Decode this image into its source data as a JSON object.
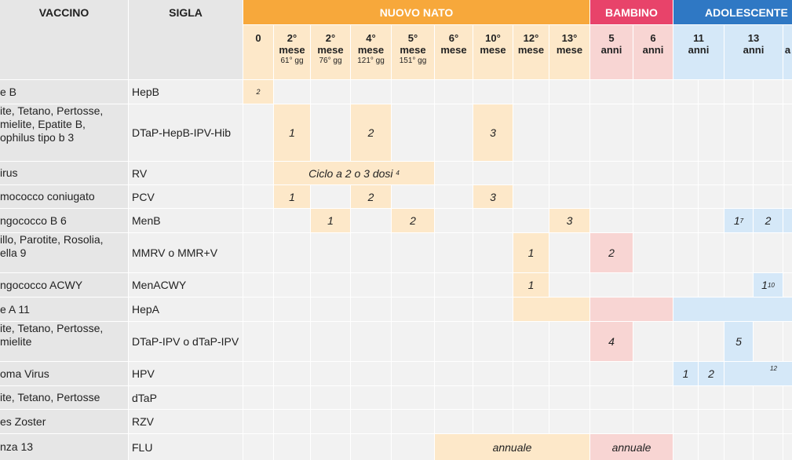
{
  "header": {
    "vaccine_col": "VACCINO",
    "abbr_col": "SIGLA",
    "groups": [
      "NUOVO NATO",
      "BAMBINO",
      "ADOLESCENTE"
    ]
  },
  "ages": [
    {
      "n": "0",
      "u": "",
      "s": ""
    },
    {
      "n": "2°",
      "u": "mese",
      "s": "61° gg"
    },
    {
      "n": "2°",
      "u": "mese",
      "s": "76° gg"
    },
    {
      "n": "4°",
      "u": "mese",
      "s": "121° gg"
    },
    {
      "n": "5°",
      "u": "mese",
      "s": "151° gg"
    },
    {
      "n": "6°",
      "u": "mese",
      "s": ""
    },
    {
      "n": "10°",
      "u": "mese",
      "s": ""
    },
    {
      "n": "12°",
      "u": "mese",
      "s": ""
    },
    {
      "n": "13°",
      "u": "mese",
      "s": ""
    },
    {
      "n": "5",
      "u": "anni",
      "s": ""
    },
    {
      "n": "6",
      "u": "anni",
      "s": ""
    },
    {
      "n": "11",
      "u": "anni",
      "s": ""
    },
    {
      "n": "13",
      "u": "anni",
      "s": ""
    },
    {
      "n": "",
      "u": "a",
      "s": ""
    }
  ],
  "rows": [
    {
      "name": [
        "e B"
      ],
      "abbr": "HepB"
    },
    {
      "name": [
        "ite, Tetano, Pertosse,",
        "mielite, Epatite B,",
        "ophilus tipo b 3"
      ],
      "abbr": "DTaP-HepB-IPV-Hib"
    },
    {
      "name": [
        "irus"
      ],
      "abbr": "RV"
    },
    {
      "name": [
        "mococco coniugato"
      ],
      "abbr": "PCV"
    },
    {
      "name": [
        "ngococco B 6"
      ],
      "abbr": "MenB"
    },
    {
      "name": [
        "illo, Parotite, Rosolia,",
        "ella 9"
      ],
      "abbr": "MMRV o MMR+V"
    },
    {
      "name": [
        "ngococco ACWY"
      ],
      "abbr": "MenACWY"
    },
    {
      "name": [
        "e A 11"
      ],
      "abbr": "HepA"
    },
    {
      "name": [
        "ite, Tetano, Pertosse,",
        "mielite"
      ],
      "abbr": "DTaP-IPV o dTaP-IPV"
    },
    {
      "name": [
        "oma Virus"
      ],
      "abbr": "HPV"
    },
    {
      "name": [
        "ite, Tetano, Pertosse"
      ],
      "abbr": "dTaP"
    },
    {
      "name": [
        "es Zoster"
      ],
      "abbr": "RZV"
    },
    {
      "name": [
        "nza 13"
      ],
      "abbr": "FLU"
    }
  ],
  "doses": {
    "hepb_2": "2",
    "d1": "1",
    "d2": "2",
    "d3": "3",
    "d4": "4",
    "d5": "5",
    "rv_cycle": "Ciclo a 2 o 3 dosi",
    "rv_sup": "4",
    "men7": "7",
    "men10": "10",
    "hpv12": "12",
    "annual": "annuale"
  },
  "colors": {
    "newborn": "#f7a83b",
    "child": "#e8436a",
    "adolescent": "#2f78c4"
  }
}
